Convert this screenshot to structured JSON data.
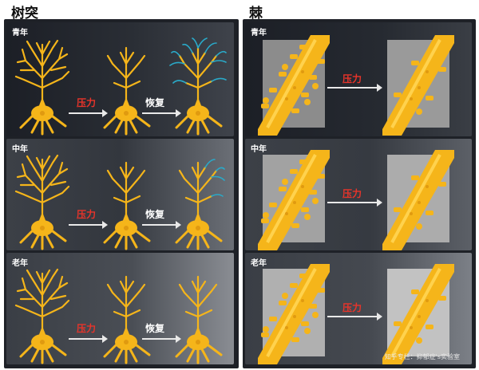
{
  "headers": {
    "dendrite": "树突",
    "spine": "棘"
  },
  "labels": {
    "pressure": "压力",
    "recovery": "恢复"
  },
  "rows": [
    {
      "age": "青年",
      "recovery_shown": true,
      "regrowth": "strong"
    },
    {
      "age": "中年",
      "recovery_shown": true,
      "regrowth": "partial"
    },
    {
      "age": "老年",
      "recovery_shown": true,
      "regrowth": "none"
    }
  ],
  "watermark": "知乎专栏：抑郁症's实验室",
  "colors": {
    "neuron": "#f5b51a",
    "regrowth": "#2aa9c8",
    "pressure_text": "#e8342a",
    "background": "#1e2127"
  }
}
